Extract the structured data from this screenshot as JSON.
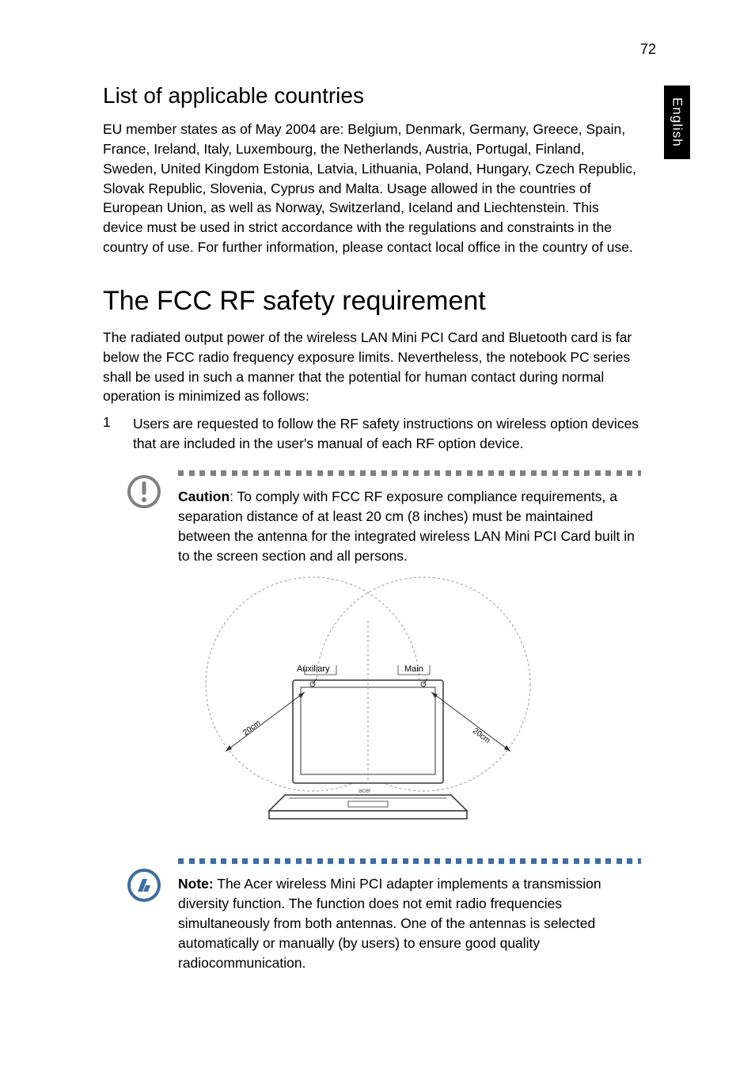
{
  "page_number": "72",
  "side_tab": "English",
  "section1": {
    "heading": "List of applicable countries",
    "body": "EU member states as of May 2004 are: Belgium, Denmark, Germany, Greece, Spain, France, Ireland, Italy, Luxembourg, the Netherlands, Austria, Portugal, Finland, Sweden, United Kingdom Estonia, Latvia, Lithuania, Poland, Hungary, Czech Republic, Slovak Republic, Slovenia, Cyprus and Malta. Usage allowed in the countries of European Union, as well as Norway, Switzerland, Iceland and Liechtenstein. This device must be used in strict accordance with the regulations and constraints in the country of use. For further information, please contact local office in the country of use."
  },
  "section2": {
    "heading": "The FCC RF safety requirement",
    "body": "The radiated output power of the wireless LAN Mini PCI Card and Bluetooth card is far below the FCC radio frequency exposure limits. Nevertheless, the notebook PC series shall be used in such a manner that the potential for human contact during normal operation is minimized as follows:",
    "list_num": "1",
    "list_item": "Users are requested to follow the RF safety instructions on wireless option devices that are included in the user's manual of each RF option device."
  },
  "caution": {
    "label": "Caution",
    "text": ": To comply with FCC RF exposure compliance requirements, a separation distance of at least 20 cm (8 inches) must be maintained between the antenna for the integrated wireless LAN Mini PCI Card built in to the screen section and all persons.",
    "dot_color": "#808080",
    "icon_stroke": "#808080"
  },
  "diagram": {
    "aux_label": "Auxiliary",
    "main_label": "Main",
    "left_dist": "20cm",
    "right_dist": "20cm",
    "brand": "acer",
    "circle_stroke": "#9a9a9a",
    "laptop_stroke": "#333333",
    "label_font": "11"
  },
  "note": {
    "label": "Note:",
    "text": " The Acer wireless Mini PCI adapter implements a transmission diversity function. The function does not emit radio frequencies simultaneously from both antennas. One of the antennas is selected automatically or manually (by users) to ensure good quality radiocommunication.",
    "dot_color": "#3b6ea5",
    "icon_stroke": "#3b6ea5"
  }
}
